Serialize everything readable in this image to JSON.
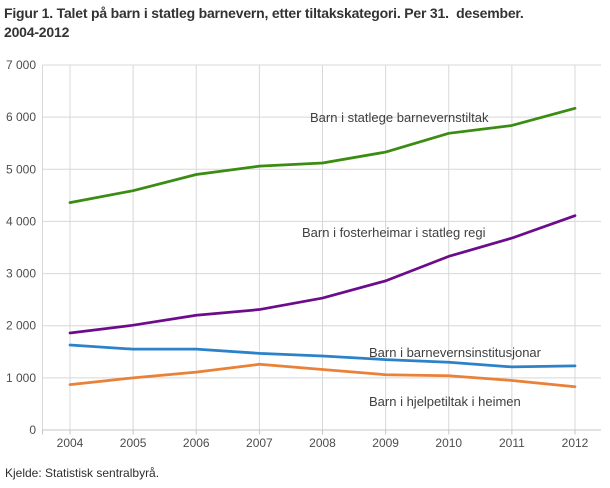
{
  "figure": {
    "title_line1": "Figur 1. Talet på barn i statleg barnevern, etter tiltakskategori. Per 31.  desember.",
    "title_line2": "2004-2012",
    "source": "Kjelde: Statistisk sentralbyrå."
  },
  "colors": {
    "grid": "#d8d8d8",
    "axis": "#c4c4c4",
    "tick_text": "#4d4d4d",
    "label_text": "#404040"
  },
  "chart_data": {
    "type": "line",
    "title": "Figur 1. Talet på barn i statleg barnevern, etter tiltakskategori. Per 31.  desember. 2004-2012",
    "x": [
      2004,
      2005,
      2006,
      2007,
      2008,
      2009,
      2010,
      2011,
      2012
    ],
    "x_labels": [
      "2004",
      "2005",
      "2006",
      "2007",
      "2008",
      "2009",
      "2010",
      "2011",
      "2012"
    ],
    "ylim": [
      0,
      7000
    ],
    "ytick_step": 1000,
    "ytick_labels": [
      "0",
      "1 000",
      "2 000",
      "3 000",
      "4 000",
      "5 000",
      "6 000",
      "7 000"
    ],
    "grid": true,
    "legend_position": "inline-labels-on-plot",
    "series": [
      {
        "name": "Barn i statlege barnevernstiltak",
        "color": "#3a8c12",
        "values": [
          4360,
          4590,
          4900,
          5060,
          5120,
          5330,
          5690,
          5840,
          6170
        ]
      },
      {
        "name": "Barn i fosterheimar i statleg regi",
        "color": "#6c0c8c",
        "values": [
          1860,
          2010,
          2200,
          2310,
          2530,
          2860,
          3330,
          3680,
          4110
        ]
      },
      {
        "name": "Barn i barnevernsinstitusjonar",
        "color": "#2b82c8",
        "values": [
          1630,
          1550,
          1550,
          1470,
          1420,
          1350,
          1300,
          1210,
          1230
        ]
      },
      {
        "name": "Barn i hjelpetiltak i heimen",
        "color": "#e98138",
        "values": [
          870,
          1000,
          1110,
          1260,
          1160,
          1060,
          1040,
          950,
          830
        ]
      }
    ],
    "source": "Kjelde: Statistisk sentralbyrå."
  }
}
